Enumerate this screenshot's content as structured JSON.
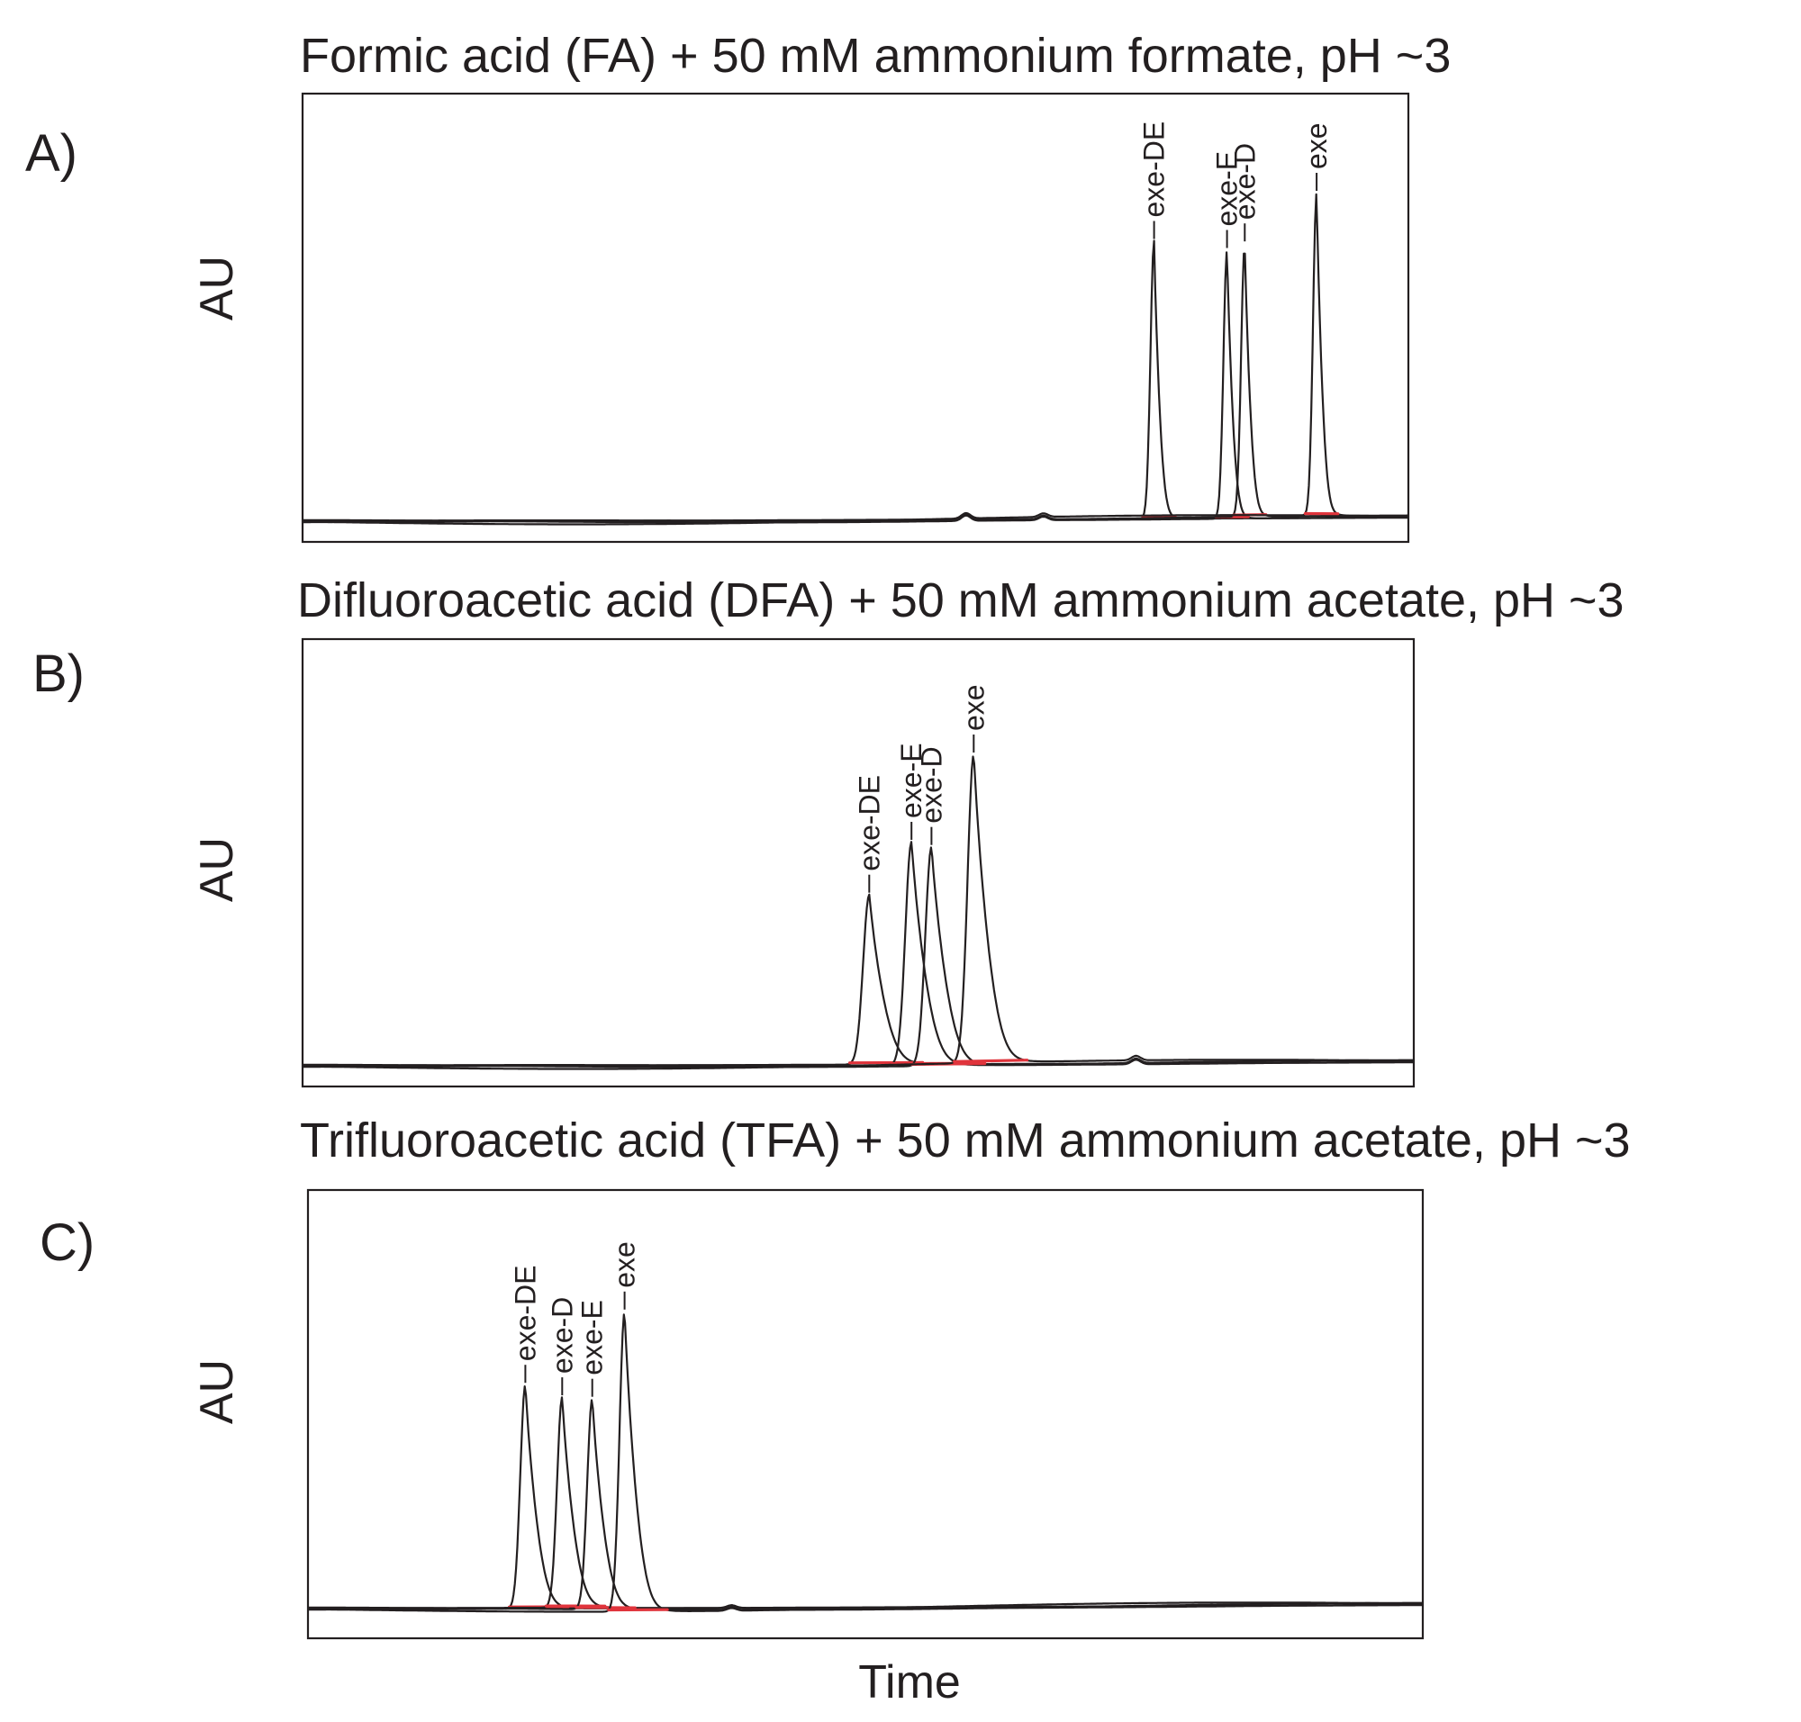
{
  "chart_data": [
    {
      "type": "line",
      "panel": "A)",
      "title": "Formic acid (FA) + 50 mM ammonium formate, pH ~3",
      "ylabel": "AU",
      "xlabel": "",
      "xlim": [
        0,
        1
      ],
      "ylim": [
        0,
        1
      ],
      "baseline": 0.05,
      "trace_color": "#231f20",
      "integration_color": "#e0343c",
      "peaks": [
        {
          "label": "exe-DE",
          "x": 0.77,
          "height": 0.62
        },
        {
          "label": "exe-E",
          "x": 0.836,
          "height": 0.6
        },
        {
          "label": "exe-D",
          "x": 0.852,
          "height": 0.61
        },
        {
          "label": "exe",
          "x": 0.917,
          "height": 0.72
        }
      ],
      "minor_bumps": [
        {
          "x": 0.6,
          "height": 0.012
        },
        {
          "x": 0.67,
          "height": 0.008
        }
      ]
    },
    {
      "type": "line",
      "panel": "B)",
      "title": "Difluoroacetic acid (DFA) + 50 mM ammonium acetate, pH ~3",
      "ylabel": "AU",
      "xlabel": "",
      "xlim": [
        0,
        1
      ],
      "ylim": [
        0,
        1
      ],
      "baseline": 0.05,
      "trace_color": "#231f20",
      "integration_color": "#e0343c",
      "peaks": [
        {
          "label": "exe-DE",
          "x": 0.51,
          "height": 0.38
        },
        {
          "label": "exe-E",
          "x": 0.548,
          "height": 0.5
        },
        {
          "label": "exe-D",
          "x": 0.566,
          "height": 0.49
        },
        {
          "label": "exe",
          "x": 0.604,
          "height": 0.69
        }
      ],
      "minor_bumps": [
        {
          "x": 0.75,
          "height": 0.01
        }
      ]
    },
    {
      "type": "line",
      "panel": "C)",
      "title": "Trifluoroacetic acid (TFA) + 50 mM ammonium acetate, pH ~3",
      "ylabel": "AU",
      "xlabel": "Time",
      "xlim": [
        0,
        1
      ],
      "ylim": [
        0,
        1
      ],
      "baseline": 0.07,
      "trace_color": "#231f20",
      "integration_color": "#e0343c",
      "peaks": [
        {
          "label": "exe-DE",
          "x": 0.195,
          "height": 0.5
        },
        {
          "label": "exe-D",
          "x": 0.228,
          "height": 0.47
        },
        {
          "label": "exe-E",
          "x": 0.255,
          "height": 0.47
        },
        {
          "label": "exe",
          "x": 0.284,
          "height": 0.67
        }
      ],
      "minor_bumps": [
        {
          "x": 0.38,
          "height": 0.006
        }
      ]
    }
  ]
}
